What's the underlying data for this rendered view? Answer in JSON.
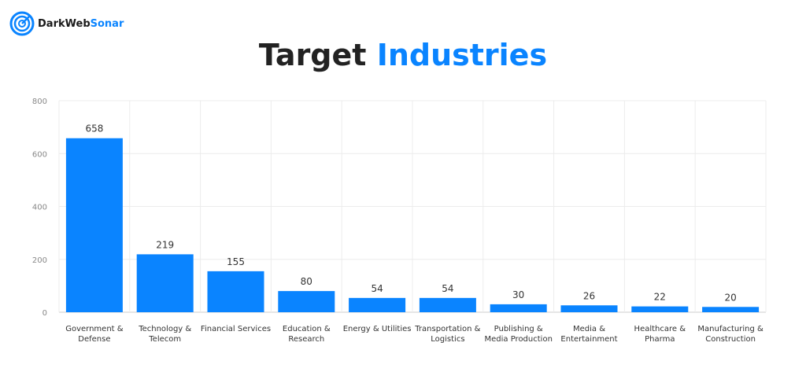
{
  "brand": {
    "name_part1": "DarkWeb",
    "name_part2": "Sonar",
    "icon": "radar-icon"
  },
  "title": {
    "part1": "Target",
    "part2": "Industries"
  },
  "chart_data": {
    "type": "bar",
    "categories": [
      [
        "Government &",
        "Defense"
      ],
      [
        "Technology &",
        "Telecom"
      ],
      [
        "Financial Services"
      ],
      [
        "Education &",
        "Research"
      ],
      [
        "Energy & Utilities"
      ],
      [
        "Transportation &",
        "Logistics"
      ],
      [
        "Publishing &",
        "Media Production"
      ],
      [
        "Media &",
        "Entertainment"
      ],
      [
        "Healthcare &",
        "Pharma"
      ],
      [
        "Manufacturing &",
        "Construction"
      ]
    ],
    "values": [
      658,
      219,
      155,
      80,
      54,
      54,
      30,
      26,
      22,
      20
    ],
    "ylim": [
      0,
      800
    ],
    "yticks": [
      0,
      200,
      400,
      600,
      800
    ],
    "grid": true,
    "bar_color": "#0a84ff"
  }
}
